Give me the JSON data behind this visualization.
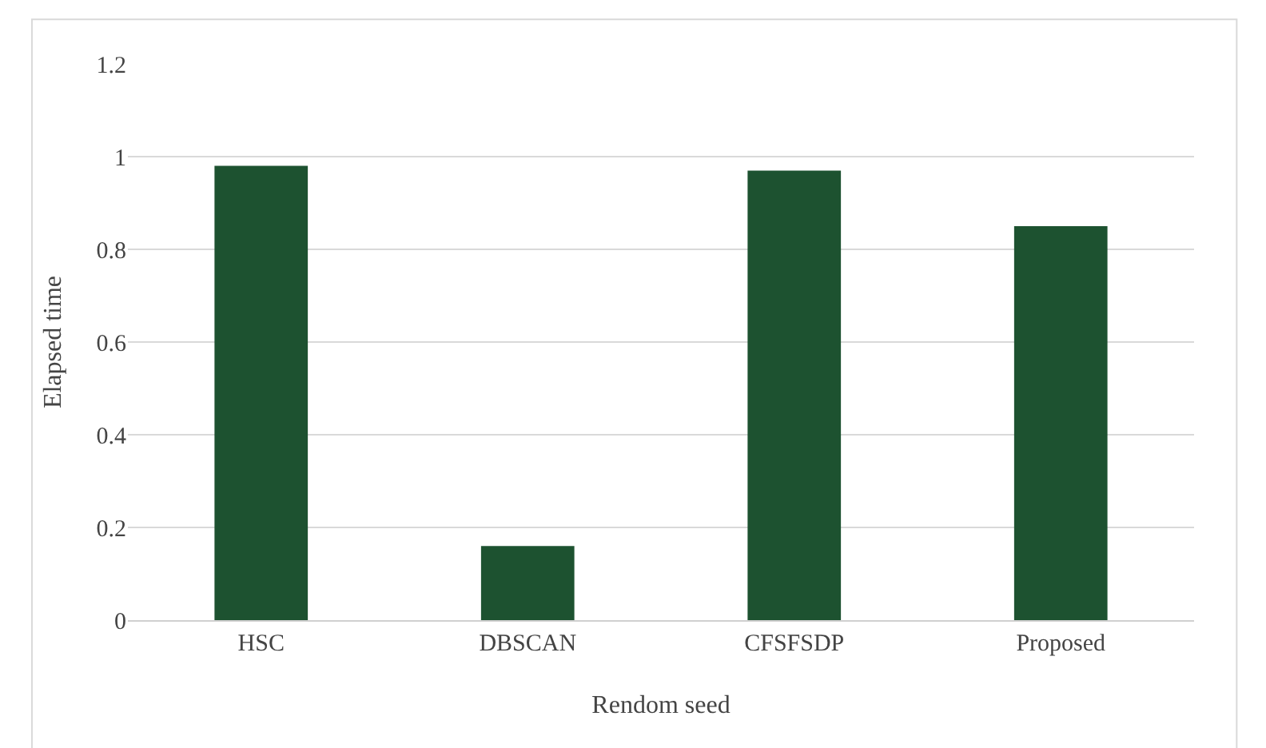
{
  "chart_data": {
    "type": "bar",
    "xlabel": "Rendom seed",
    "ylabel": "Elapsed time",
    "categories": [
      "HSC",
      "DBSCAN",
      "CFSFSDP",
      "Proposed"
    ],
    "values": [
      0.98,
      0.16,
      0.97,
      0.85
    ],
    "color": "#1d5230",
    "ylim": [
      0,
      1.2
    ],
    "yticks": [
      0,
      0.2,
      0.4,
      0.6,
      0.8,
      1,
      1.2
    ],
    "grid": "y"
  }
}
